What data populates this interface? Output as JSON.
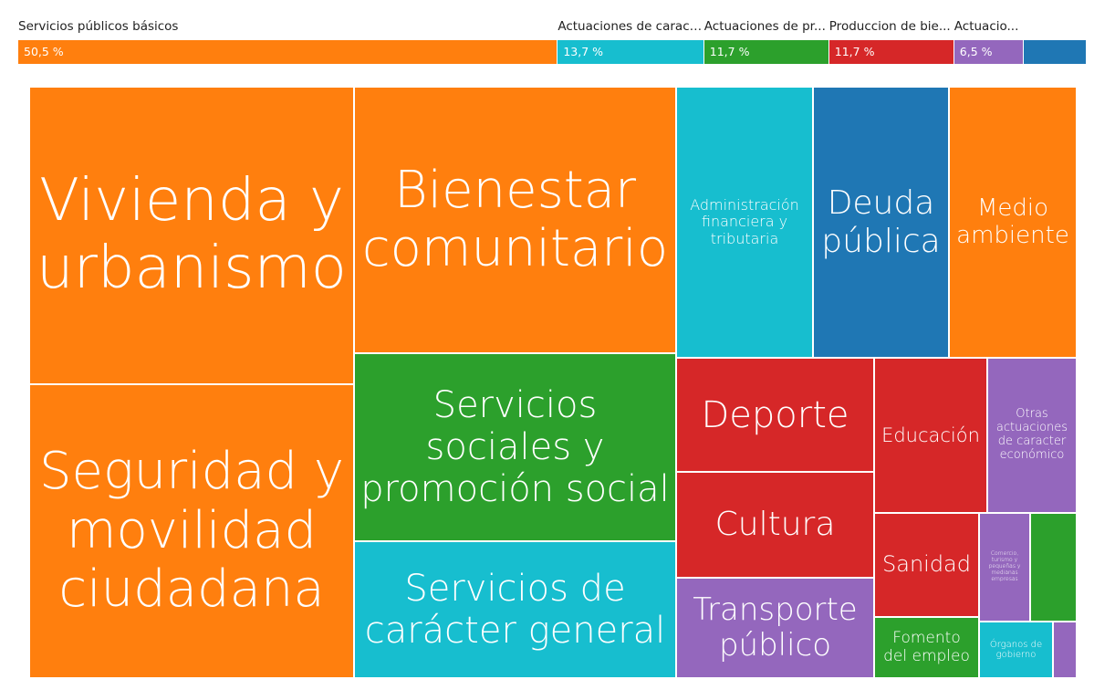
{
  "chart_data": {
    "type": "treemap",
    "categories": [
      {
        "name": "Servicios públicos básicos",
        "display": "Servicios públicos básicos",
        "percent": 50.5,
        "percent_label": "50,5",
        "color": "#ff7f0e"
      },
      {
        "name": "Actuaciones de carácter general",
        "display": "Actuaciones de caract...",
        "percent": 13.7,
        "percent_label": "13,7",
        "color": "#17becf"
      },
      {
        "name": "Actuaciones de protección y promoción social",
        "display": "Actuaciones de pr...",
        "percent": 11.7,
        "percent_label": "11,7",
        "color": "#2ca02c"
      },
      {
        "name": "Producción de bienes públicos",
        "display": "Produccion de bie...",
        "percent": 11.7,
        "percent_label": "11,7",
        "color": "#d62728"
      },
      {
        "name": "Actuaciones de carácter económico",
        "display": "Actuacio...",
        "percent": 6.5,
        "percent_label": "6,5",
        "color": "#9467bd"
      },
      {
        "name": "",
        "display": "",
        "percent": 5.9,
        "percent_label": "",
        "color": "#1f77b4"
      }
    ],
    "percent_suffix": "%",
    "tiles": [
      {
        "name": "Vivienda y urbanismo",
        "category": 0
      },
      {
        "name": "Seguridad y movilidad ciudadana",
        "category": 0
      },
      {
        "name": "Bienestar comunitario",
        "category": 0
      },
      {
        "name": "Servicios sociales y promoción social",
        "category": 2
      },
      {
        "name": "Servicios de carácter general",
        "category": 1
      },
      {
        "name": "Administración financiera y tributaria",
        "category": 1
      },
      {
        "name": "Deuda pública",
        "category": 5
      },
      {
        "name": "Medio ambiente",
        "category": 0
      },
      {
        "name": "Deporte",
        "category": 3
      },
      {
        "name": "Cultura",
        "category": 3
      },
      {
        "name": "Transporte público",
        "category": 4
      },
      {
        "name": "Educación",
        "category": 3
      },
      {
        "name": "Otras actuaciones de caracter económico",
        "category": 4
      },
      {
        "name": "Sanidad",
        "category": 3
      },
      {
        "name": "Comercio, turismo y pequeñas y medianas empresas",
        "category": 4
      },
      {
        "name": "",
        "category": 2
      },
      {
        "name": "Fomento del empleo",
        "category": 2
      },
      {
        "name": "Órganos de gobierno",
        "category": 1
      },
      {
        "name": "",
        "category": 4
      }
    ]
  }
}
